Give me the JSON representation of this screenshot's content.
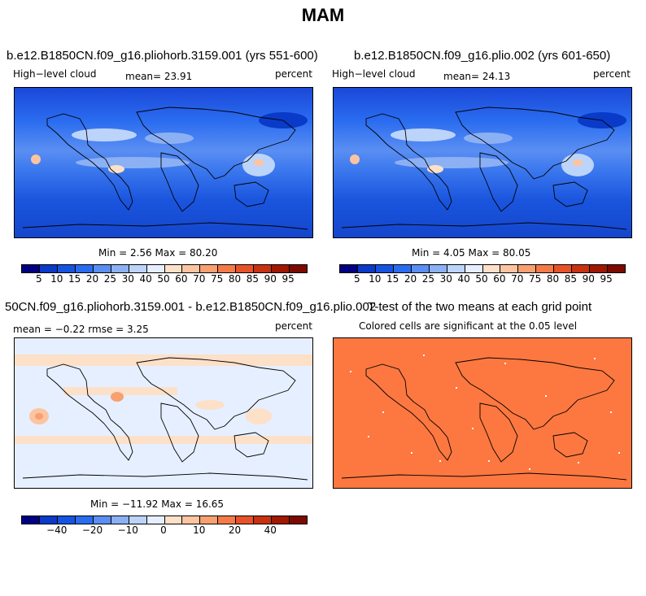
{
  "figure": {
    "title": "MAM"
  },
  "panels": [
    {
      "title": "b.e12.B1850CN.f09_g16.pliohorb.3159.001 (yrs 551-600)",
      "left_label": "High−level cloud",
      "center_label": "mean=  23.91",
      "right_label": "percent",
      "stats": "Min =   2.56 Max =  80.20",
      "colorbar_ticks": [
        "5",
        "10",
        "15",
        "20",
        "25",
        "30",
        "40",
        "50",
        "60",
        "70",
        "75",
        "80",
        "85",
        "90",
        "95"
      ]
    },
    {
      "title": "b.e12.B1850CN.f09_g16.plio.002 (yrs 601-650)",
      "left_label": "High−level cloud",
      "center_label": "mean=  24.13",
      "right_label": "percent",
      "stats": "Min =   4.05 Max =  80.05",
      "colorbar_ticks": [
        "5",
        "10",
        "15",
        "20",
        "25",
        "30",
        "40",
        "50",
        "60",
        "70",
        "75",
        "80",
        "85",
        "90",
        "95"
      ]
    },
    {
      "title": "50CN.f09_g16.pliohorb.3159.001 - b.e12.B1850CN.f09_g16.plio.002",
      "left_label": "mean =  −0.22    rmse =   3.25",
      "right_label": "percent",
      "stats": "Min = −11.92 Max =  16.65",
      "colorbar_ticks": [
        "−40",
        "−20",
        "−10",
        "0",
        "10",
        "20",
        "40"
      ]
    },
    {
      "title": "T-test of the two means at each grid point",
      "center_label": "Colored cells are significant at the 0.05 level"
    }
  ],
  "colors": {
    "abs_scale": [
      "#000080",
      "#0a3ac8",
      "#1554e0",
      "#2a6cf0",
      "#5a8ef2",
      "#8cb0f4",
      "#bcd4fa",
      "#e6efff",
      "#fde0c8",
      "#fcc4a0",
      "#f8a070",
      "#f47a48",
      "#e85228",
      "#c83210",
      "#a01800",
      "#7c0a00"
    ],
    "diff_scale": [
      "#000080",
      "#0a3ac8",
      "#1554e0",
      "#2a6cf0",
      "#5a8ef2",
      "#8cb0f4",
      "#bcd4fa",
      "#e6efff",
      "#fde0c8",
      "#fcc4a0",
      "#f8a070",
      "#f47a48",
      "#e85228",
      "#c83210",
      "#a01800",
      "#7c0a00"
    ],
    "ttest_fill": "#fc7840"
  }
}
